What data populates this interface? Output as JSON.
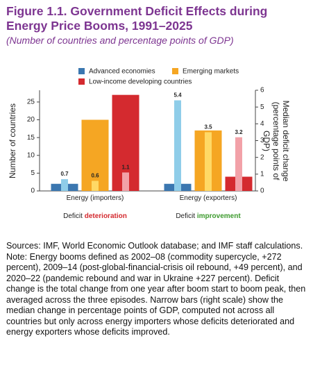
{
  "chart_data": {
    "type": "bar",
    "title": "Figure 1.1. Government Deficit Effects during Energy Price Booms, 1991–2025",
    "subtitle": "(Number of countries and percentage points of GDP)",
    "ylabel": "Number of countries",
    "y2label": "Median deficit change (percentage points of GDP)",
    "categories": [
      "Energy (importers)",
      "Energy (exporters)"
    ],
    "category_notes": [
      {
        "prefix": "Deficit",
        "emphasis": "deterioration",
        "emphasis_color": "#d42a2f"
      },
      {
        "prefix": "Deficit",
        "emphasis": "improvement",
        "emphasis_color": "#3c9a2d"
      }
    ],
    "ylim": [
      0,
      28.3
    ],
    "yticks": [
      0,
      5,
      10,
      15,
      20,
      25
    ],
    "y2lim": [
      0,
      6
    ],
    "y2ticks": [
      0,
      1,
      2,
      3,
      4,
      5,
      6
    ],
    "series": [
      {
        "name": "Advanced economies",
        "color": "#3b77b0",
        "values": [
          2,
          2
        ]
      },
      {
        "name": "Emerging markets",
        "color": "#f5a623",
        "values": [
          20,
          17
        ]
      },
      {
        "name": "Low-income developing countries",
        "color": "#d42a2f",
        "values": [
          27,
          4
        ]
      },
      {
        "color": "#8fcde9",
        "axis": "y2",
        "narrow": true,
        "values": [
          0.7,
          5.4
        ]
      },
      {
        "color": "#ffd966",
        "axis": "y2",
        "narrow": true,
        "values": [
          0.6,
          3.5
        ]
      },
      {
        "color": "#f2a1a8",
        "axis": "y2",
        "narrow": true,
        "values": [
          1.1,
          3.2
        ]
      }
    ],
    "grid": false
  },
  "notes": {
    "sources": "Sources: IMF, World Economic Outlook database; and IMF staff calculations.",
    "note": "Note: Energy booms defined as 2002–08 (commodity supercycle, +272 percent), 2009–14 (post-global-financial-crisis oil rebound, +49 percent), and 2020–22 (pandemic rebound and war in Ukraine +227 percent). Deficit change is the total change from one year after boom start to boom peak, then averaged across the three episodes. Narrow bars (right scale) show the median change in percentage points of GDP, computed not across all countries but only across energy importers whose deficits deteriorated and energy exporters whose deficits improved."
  }
}
